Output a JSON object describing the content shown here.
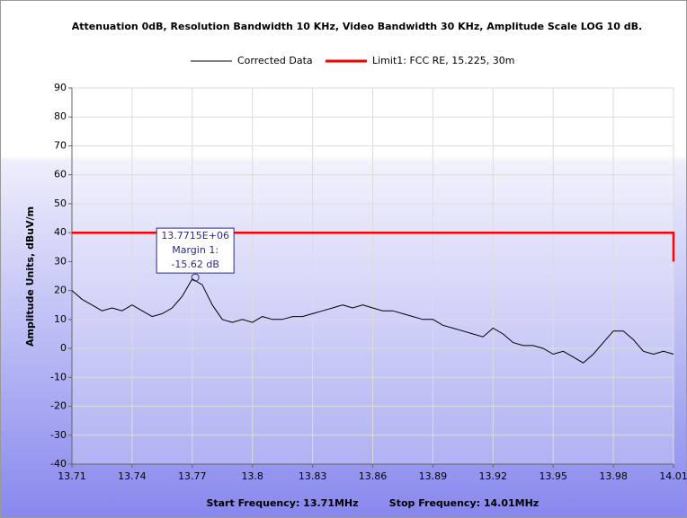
{
  "chart_data": {
    "type": "line",
    "title": "Attenuation 0dB, Resolution Bandwidth 10 KHz, Video Bandwidth 30 KHz, Amplitude Scale LOG 10 dB.",
    "y_label": "Amplitude Units, dBuV/m",
    "footer": [
      "Start Frequency: 13.71MHz",
      "Stop Frequency: 14.01MHz"
    ],
    "xlim": [
      13.71,
      14.01
    ],
    "xticks": [
      13.71,
      13.74,
      13.77,
      13.8,
      13.83,
      13.86,
      13.89,
      13.92,
      13.95,
      13.98,
      14.01
    ],
    "ylim": [
      -40,
      90
    ],
    "yticks": [
      -40,
      -30,
      -20,
      -10,
      0,
      10,
      20,
      30,
      40,
      50,
      60,
      70,
      80,
      90
    ],
    "grid": true,
    "legend": "top",
    "series": [
      {
        "name": "Corrected Data",
        "color": "#000000",
        "x": [
          13.71,
          13.715,
          13.72,
          13.725,
          13.73,
          13.735,
          13.74,
          13.745,
          13.75,
          13.755,
          13.76,
          13.765,
          13.77,
          13.775,
          13.78,
          13.785,
          13.79,
          13.795,
          13.8,
          13.805,
          13.81,
          13.815,
          13.82,
          13.825,
          13.83,
          13.835,
          13.84,
          13.845,
          13.85,
          13.855,
          13.86,
          13.865,
          13.87,
          13.875,
          13.88,
          13.885,
          13.89,
          13.895,
          13.9,
          13.905,
          13.91,
          13.915,
          13.92,
          13.925,
          13.93,
          13.935,
          13.94,
          13.945,
          13.95,
          13.955,
          13.96,
          13.965,
          13.97,
          13.975,
          13.98,
          13.985,
          13.99,
          13.995,
          14.0,
          14.005,
          14.01
        ],
        "values": [
          20,
          17,
          15,
          13,
          14,
          13,
          15,
          13,
          11,
          12,
          14,
          18,
          24,
          22,
          15,
          10,
          9,
          10,
          9,
          11,
          10,
          10,
          11,
          11,
          12,
          13,
          14,
          15,
          14,
          15,
          14,
          13,
          13,
          12,
          11,
          10,
          10,
          8,
          7,
          6,
          5,
          4,
          7,
          5,
          2,
          1,
          1,
          0,
          -2,
          -1,
          -3,
          -5,
          -2,
          2,
          6,
          6,
          3,
          -1,
          -2,
          -1,
          -2
        ]
      },
      {
        "name": "Limit1: FCC RE, 15.225, 30m",
        "color": "#ff0000",
        "x": [
          13.71,
          14.01,
          14.01
        ],
        "values": [
          40,
          40,
          30
        ]
      }
    ],
    "annotation": {
      "x": 13.7715,
      "y": 24.5,
      "lines": [
        "13.7715E+06",
        "Margin 1:",
        "-15.62 dB"
      ]
    }
  }
}
